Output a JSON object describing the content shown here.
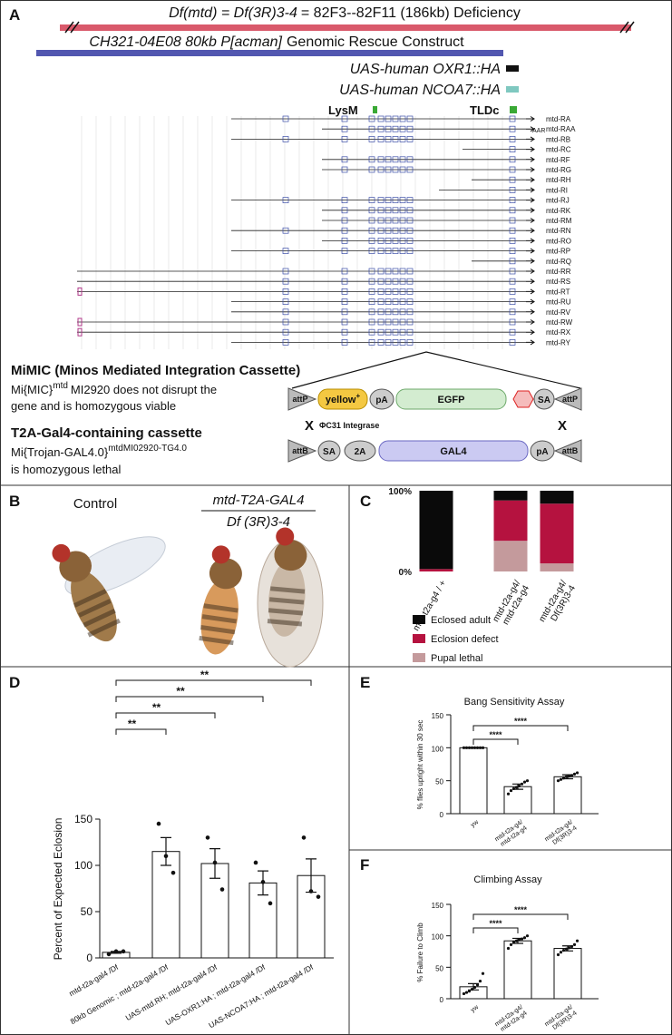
{
  "panel_a": {
    "letter": "A",
    "deficiency_italic": "Df(mtd) = Df(3R)3-4",
    "deficiency_text": "= 82F3--82F11 (186kb) Deficiency",
    "rescue_italic": "CH321-04E08 80kb P[acman]",
    "rescue_text": "Genomic Rescue Construct",
    "constructs": [
      "UAS-human OXR1::HA",
      "UAS-human NCOA7::HA"
    ],
    "domains": [
      "LysM",
      "TLDc"
    ],
    "transcripts": [
      "mtd-RA",
      "mtd-RAA",
      "mtd-RB",
      "mtd-RC",
      "mtd-RF",
      "mtd-RG",
      "mtd-RH",
      "mtd-RI",
      "mtd-RJ",
      "mtd-RK",
      "mtd-RM",
      "mtd-RN",
      "mtd-RO",
      "mtd-RP",
      "mtd-RQ",
      "mtd-RR",
      "mtd-RS",
      "mtd-RT",
      "mtd-RU",
      "mtd-RV",
      "mtd-RW",
      "mtd-RX",
      "mtd-RY"
    ],
    "transcript_note": "AAR",
    "mimic": {
      "title": "MiMIC (Minos Mediated Integration Cassette)",
      "line1": [
        "Mi{MIC}",
        "mtd",
        "MI2920 does not disrupt the"
      ],
      "line2": "gene and is homozygous viable",
      "cassette": [
        "attP",
        "yellow",
        "pA",
        "EGFP",
        "SA",
        "attP"
      ],
      "yellow_sup": "+"
    },
    "integrase": "ΦC31 Integrase",
    "cross": "X",
    "t2a": {
      "title": "T2A-Gal4-containing cassette",
      "line1": [
        "Mi{Trojan-GAL4.0}",
        "mtdMI02920-TG4.0"
      ],
      "line2": "is homozygous lethal",
      "cassette": [
        "attB",
        "SA",
        "2A",
        "GAL4",
        "pA",
        "attB"
      ]
    }
  },
  "panel_b": {
    "letter": "B",
    "control": "Control",
    "genotype": [
      "mtd-T2A-GAL4",
      "Df (3R)3-4"
    ]
  },
  "chart_data": [
    {
      "type": "stacked_bar",
      "letter": "C",
      "categories": [
        "mtd-t2a-g4 / +",
        "mtd-t2a-g4/ mtd-t2a-g4",
        "mtd-t2a-g4/ Df(3R)3-4"
      ],
      "series": [
        {
          "name": "Eclosed adult",
          "color": "#0a0a0a",
          "values": [
            97,
            12,
            16
          ]
        },
        {
          "name": "Eclosion defect",
          "color": "#b5123f",
          "values": [
            3,
            50,
            74
          ]
        },
        {
          "name": "Pupal lethal",
          "color": "#c49a9c",
          "values": [
            0,
            38,
            10
          ]
        }
      ],
      "ylim": [
        0,
        100
      ],
      "yticks": [
        {
          "value": 0,
          "label": "0%"
        },
        {
          "value": 100,
          "label": "100%"
        }
      ]
    },
    {
      "type": "bar",
      "letter": "D",
      "ylabel": "Percent of Expected Eclosion",
      "categories": [
        "mtd-t2a-gal4 /Df",
        "80kb Genomic ; mtd-t2a-gal4 /Df",
        "UAS-mtd.RH; mtd-t2a-gal4 /Df",
        "UAS-OXR1:HA ; mtd-t2a-gal4 /Df",
        "UAS-NCOA7:HA ; mtd-t2a-gal4 /Df"
      ],
      "values": [
        6,
        115,
        102,
        81,
        89
      ],
      "errors": [
        1,
        15,
        16,
        13,
        18
      ],
      "points": [
        [
          4,
          7,
          7
        ],
        [
          145,
          110,
          92
        ],
        [
          130,
          103,
          74
        ],
        [
          103,
          82,
          59
        ],
        [
          130,
          72,
          66
        ]
      ],
      "color": "#ffffff",
      "ylim": [
        0,
        150
      ],
      "yticks": [
        0,
        50,
        100,
        150
      ],
      "significance": [
        "**",
        "**",
        "**",
        "**"
      ]
    },
    {
      "type": "bar",
      "letter": "E",
      "title": "Bang Sensitivity Assay",
      "ylabel": "% flies upright within 30 sec",
      "categories": [
        "yw",
        "mtd-t2a-g4/ mtd-t2a-g4",
        "mtd-t2a-g4/ Df(3R)3-4"
      ],
      "values": [
        100,
        41,
        56
      ],
      "errors": [
        0,
        4,
        3
      ],
      "points": [
        [
          100,
          100,
          100,
          100,
          100,
          100,
          100,
          100
        ],
        [
          30,
          35,
          38,
          40,
          42,
          45,
          48,
          50
        ],
        [
          50,
          52,
          54,
          56,
          57,
          58,
          60,
          62
        ]
      ],
      "color": "#ffffff",
      "ylim": [
        0,
        150
      ],
      "yticks": [
        0,
        50,
        100,
        150
      ],
      "significance": [
        "****",
        "****"
      ]
    },
    {
      "type": "bar",
      "letter": "F",
      "title": "Climbing Assay",
      "ylabel": "% Failure to Climb",
      "categories": [
        "yw",
        "mtd-t2a-g4/ mtd-t2a-g4",
        "mtd-t2a-g4/ Df(3R)3-4"
      ],
      "values": [
        19,
        92,
        80
      ],
      "errors": [
        5,
        4,
        4
      ],
      "points": [
        [
          8,
          10,
          12,
          15,
          18,
          22,
          28,
          40
        ],
        [
          80,
          86,
          90,
          92,
          94,
          95,
          97,
          100
        ],
        [
          70,
          74,
          77,
          79,
          81,
          83,
          86,
          92
        ]
      ],
      "color": "#ffffff",
      "ylim": [
        0,
        150
      ],
      "yticks": [
        0,
        50,
        100,
        150
      ],
      "significance": [
        "****",
        "****"
      ]
    }
  ]
}
